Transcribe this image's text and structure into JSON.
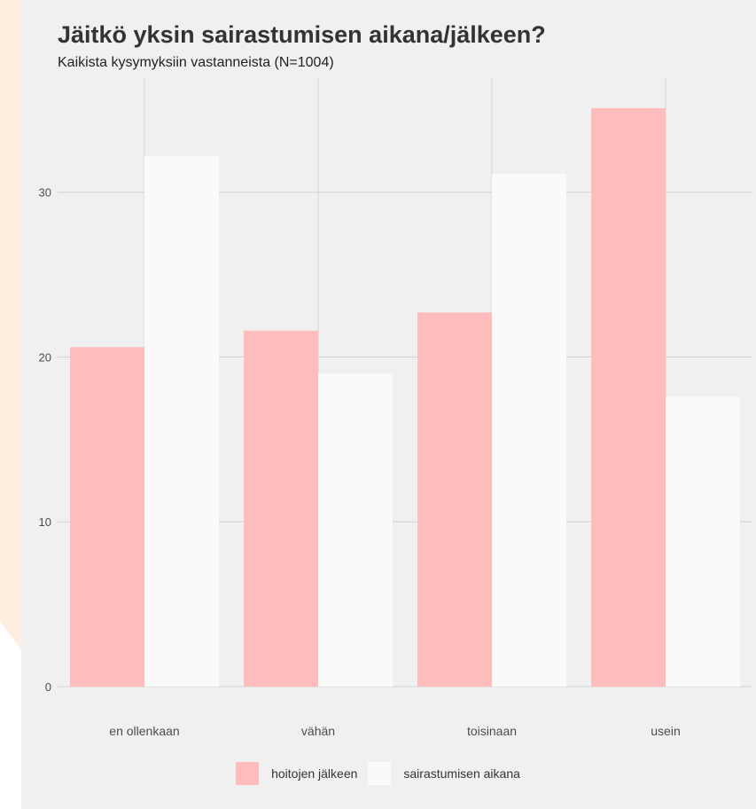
{
  "colors": {
    "panel": "#f0f0f0",
    "accent_band": "#fdeedd",
    "grid": "#d3d3d3",
    "text_dark": "#333333",
    "text_axis": "#4d4d4d"
  },
  "chart_data": {
    "type": "bar",
    "title": "Jäitkö yksin sairastumisen aikana/jälkeen?",
    "subtitle": "Kaikista kysymyksiin vastanneista (N=1004)",
    "xlabel": "",
    "ylabel": "",
    "categories": [
      "en ollenkaan",
      "vähän",
      "toisinaan",
      "usein"
    ],
    "series": [
      {
        "name": "hoitojen jälkeen",
        "color": "#ffbcbc",
        "values": [
          20.6,
          21.6,
          22.7,
          35.1
        ]
      },
      {
        "name": "sairastumisen aikana",
        "color": "#fafaf9",
        "values": [
          32.2,
          19.0,
          31.1,
          17.6
        ]
      }
    ],
    "yticks": [
      0,
      10,
      20,
      30
    ],
    "ylim": [
      0,
      35.1
    ],
    "grid": true,
    "legend_position": "bottom"
  }
}
